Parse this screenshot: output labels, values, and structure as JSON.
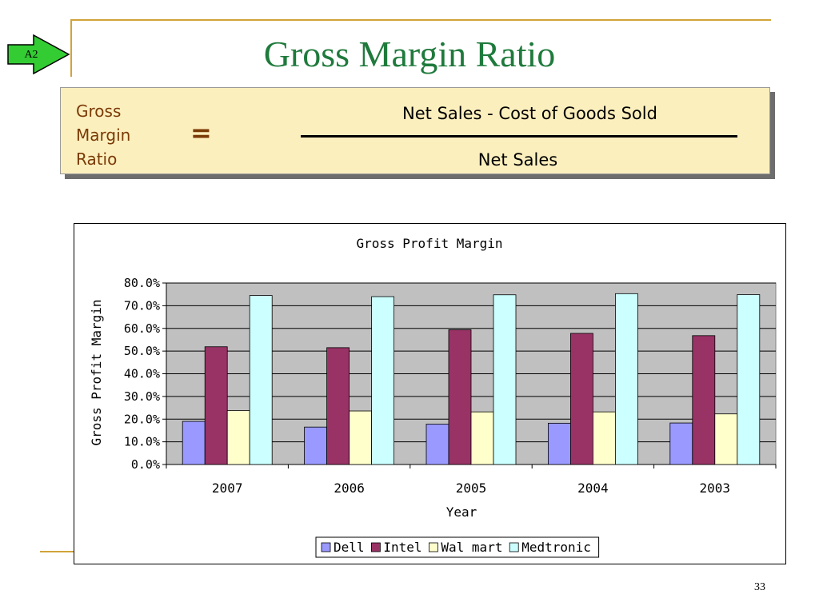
{
  "badge": {
    "label": "A2"
  },
  "slide": {
    "title": "Gross Margin Ratio",
    "page_number": "33"
  },
  "formula": {
    "label_lines": [
      "Gross",
      "Margin",
      "Ratio"
    ],
    "equals": "=",
    "numerator": "Net Sales  -  Cost of Goods Sold",
    "denominator": "Net Sales"
  },
  "colors": {
    "title": "#1f7a3c",
    "formula_text": "#7a3a06",
    "formula_background": "#fcefbe",
    "plot_background": "#c0c0c0",
    "accent_rule": "#d1a33a"
  },
  "chart_data": {
    "type": "bar",
    "title": "Gross Profit Margin",
    "xlabel": "Year",
    "ylabel": "Gross Profit Margin",
    "categories": [
      "2007",
      "2006",
      "2005",
      "2004",
      "2003"
    ],
    "ylim": [
      0,
      80
    ],
    "yticks": [
      "0.0%",
      "10.0%",
      "20.0%",
      "30.0%",
      "40.0%",
      "50.0%",
      "60.0%",
      "70.0%",
      "80.0%"
    ],
    "grid": true,
    "legend_position": "bottom",
    "series": [
      {
        "name": "Dell",
        "color": "#9999ff",
        "values": [
          19.0,
          16.5,
          17.8,
          18.2,
          18.3
        ]
      },
      {
        "name": "Intel",
        "color": "#993366",
        "values": [
          51.9,
          51.5,
          59.4,
          57.8,
          56.8
        ]
      },
      {
        "name": "Wal mart",
        "color": "#ffffcc",
        "values": [
          23.8,
          23.6,
          23.2,
          23.2,
          22.3
        ]
      },
      {
        "name": "Medtronic",
        "color": "#ccffff",
        "values": [
          74.5,
          74.0,
          74.8,
          75.3,
          74.9
        ]
      }
    ]
  }
}
